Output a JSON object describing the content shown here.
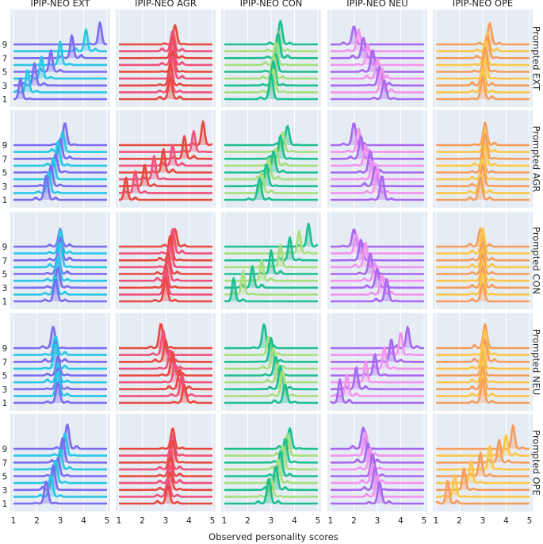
{
  "chart_data": {
    "type": "ridgeline-grid",
    "title": "",
    "xlabel": "Observed personality scores",
    "xlim": [
      1,
      5
    ],
    "x_ticks": [
      "1",
      "2",
      "3",
      "4",
      "5"
    ],
    "y_tick_labels": [
      "1",
      "3",
      "5",
      "7",
      "9"
    ],
    "prompt_levels": [
      1,
      2,
      3,
      4,
      5,
      6,
      7,
      8,
      9
    ],
    "columns": [
      {
        "label": "IPIP-NEO EXT",
        "colors": [
          "#7b6cf0",
          "#29c8e6"
        ]
      },
      {
        "label": "IPIP-NEO AGR",
        "colors": [
          "#e8493f",
          "#f0527a"
        ]
      },
      {
        "label": "IPIP-NEO CON",
        "colors": [
          "#1dbf8f",
          "#a8df7c"
        ]
      },
      {
        "label": "IPIP-NEO NEU",
        "colors": [
          "#a868f0",
          "#f294ee"
        ]
      },
      {
        "label": "IPIP-NEO OPE",
        "colors": [
          "#f59d5c",
          "#fbc74a"
        ]
      }
    ],
    "rows": [
      {
        "label": "Prompted EXT",
        "peak_scores_col": [
          [
            1.3,
            1.6,
            1.9,
            2.2,
            2.6,
            3.0,
            3.5,
            4.1,
            4.7
          ],
          [
            3.2,
            3.2,
            3.2,
            3.3,
            3.3,
            3.3,
            3.3,
            3.3,
            3.4
          ],
          [
            3.0,
            3.1,
            3.1,
            3.1,
            3.2,
            3.2,
            3.3,
            3.3,
            3.4
          ],
          [
            3.3,
            3.2,
            3.1,
            3.0,
            2.8,
            2.6,
            2.4,
            2.2,
            2.0
          ],
          [
            3.0,
            3.0,
            3.0,
            3.1,
            3.1,
            3.1,
            3.2,
            3.2,
            3.3
          ]
        ]
      },
      {
        "label": "Prompted AGR",
        "peak_scores_col": [
          [
            2.4,
            2.5,
            2.6,
            2.7,
            2.8,
            2.9,
            3.0,
            3.1,
            3.2
          ],
          [
            1.3,
            1.7,
            2.1,
            2.5,
            2.9,
            3.3,
            3.8,
            4.2,
            4.6
          ],
          [
            2.5,
            2.6,
            2.8,
            2.9,
            3.1,
            3.2,
            3.4,
            3.5,
            3.7
          ],
          [
            3.2,
            3.0,
            2.9,
            2.8,
            2.7,
            2.5,
            2.3,
            2.2,
            2.0
          ],
          [
            2.9,
            2.9,
            3.0,
            3.0,
            3.0,
            3.1,
            3.1,
            3.1,
            3.1
          ]
        ]
      },
      {
        "label": "Prompted CON",
        "peak_scores_col": [
          [
            2.8,
            2.8,
            2.9,
            2.9,
            2.9,
            3.0,
            3.0,
            3.0,
            3.0
          ],
          [
            3.0,
            3.0,
            3.0,
            3.1,
            3.1,
            3.2,
            3.2,
            3.3,
            3.4
          ],
          [
            1.4,
            1.8,
            2.2,
            2.6,
            3.0,
            3.4,
            3.8,
            4.2,
            4.6
          ],
          [
            3.4,
            3.2,
            3.0,
            2.9,
            2.7,
            2.5,
            2.3,
            2.1,
            2.0
          ],
          [
            3.0,
            3.0,
            3.0,
            3.0,
            3.0,
            3.0,
            3.0,
            3.0,
            2.9
          ]
        ]
      },
      {
        "label": "Prompted NEU",
        "peak_scores_col": [
          [
            2.9,
            2.9,
            2.9,
            2.9,
            2.9,
            2.8,
            2.8,
            2.8,
            2.7
          ],
          [
            3.8,
            3.7,
            3.6,
            3.4,
            3.3,
            3.2,
            3.0,
            2.9,
            2.8
          ],
          [
            3.6,
            3.5,
            3.4,
            3.3,
            3.2,
            3.1,
            3.0,
            2.9,
            2.7
          ],
          [
            1.4,
            1.7,
            2.1,
            2.5,
            2.9,
            3.3,
            3.6,
            4.0,
            4.3
          ],
          [
            3.0,
            3.0,
            3.0,
            3.0,
            3.0,
            3.0,
            3.1,
            3.1,
            3.1
          ]
        ]
      },
      {
        "label": "Prompted OPE",
        "peak_scores_col": [
          [
            2.4,
            2.6,
            2.7,
            2.8,
            2.9,
            3.0,
            3.1,
            3.2,
            3.3
          ],
          [
            3.1,
            3.1,
            3.2,
            3.2,
            3.2,
            3.2,
            3.3,
            3.3,
            3.3
          ],
          [
            2.9,
            3.0,
            3.2,
            3.3,
            3.4,
            3.5,
            3.6,
            3.7,
            3.8
          ],
          [
            3.1,
            3.0,
            2.9,
            2.8,
            2.8,
            2.7,
            2.6,
            2.5,
            2.4
          ],
          [
            1.5,
            1.8,
            2.2,
            2.5,
            2.9,
            3.3,
            3.7,
            4.0,
            4.3
          ]
        ]
      }
    ]
  }
}
